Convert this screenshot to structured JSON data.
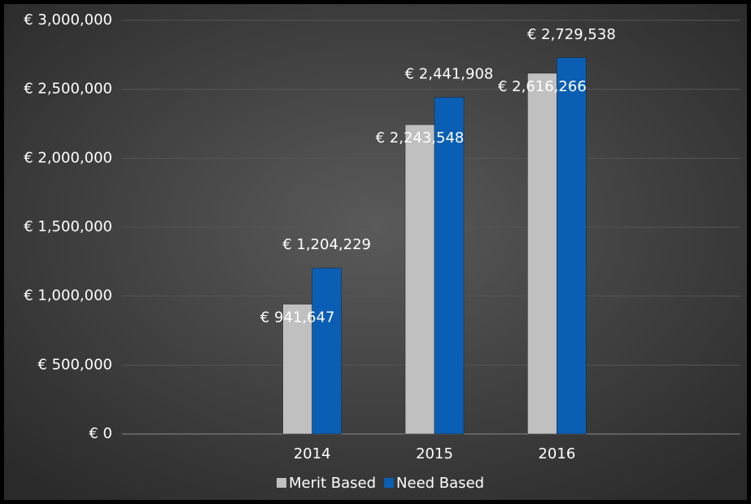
{
  "chart_data": {
    "type": "bar",
    "categories": [
      null,
      "2014",
      "2015",
      "2016",
      null
    ],
    "series": [
      {
        "name": "Merit Based",
        "color": "#c0c0c0",
        "values": [
          null,
          941647,
          2243548,
          2616266,
          null
        ],
        "value_labels": [
          null,
          "€ 941,647",
          "€ 2,243,548",
          "€ 2,616,266",
          null
        ]
      },
      {
        "name": "Need Based",
        "color": "#0a5fb4",
        "values": [
          null,
          1204229,
          2441908,
          2729538,
          null
        ],
        "value_labels": [
          null,
          "€ 1,204,229",
          "€ 2,441,908",
          "€ 2,729,538",
          null
        ]
      }
    ],
    "ylim": [
      0,
      3000000
    ],
    "yticks": [
      {
        "value": 0,
        "label": "€ 0"
      },
      {
        "value": 500000,
        "label": "€ 500,000"
      },
      {
        "value": 1000000,
        "label": "€ 1,000,000"
      },
      {
        "value": 1500000,
        "label": "€ 1,500,000"
      },
      {
        "value": 2000000,
        "label": "€ 2,000,000"
      },
      {
        "value": 2500000,
        "label": "€ 2,500,000"
      },
      {
        "value": 3000000,
        "label": "€ 3,000,000"
      }
    ],
    "grid": true,
    "legend": "bottom"
  }
}
